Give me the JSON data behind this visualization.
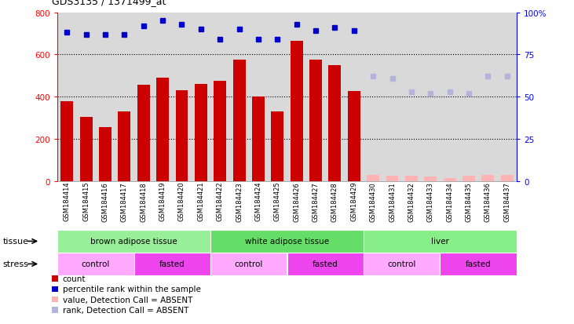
{
  "title": "GDS3135 / 1371499_at",
  "samples": [
    "GSM184414",
    "GSM184415",
    "GSM184416",
    "GSM184417",
    "GSM184418",
    "GSM184419",
    "GSM184420",
    "GSM184421",
    "GSM184422",
    "GSM184423",
    "GSM184424",
    "GSM184425",
    "GSM184426",
    "GSM184427",
    "GSM184428",
    "GSM184429",
    "GSM184430",
    "GSM184431",
    "GSM184432",
    "GSM184433",
    "GSM184434",
    "GSM184435",
    "GSM184436",
    "GSM184437"
  ],
  "count_values": [
    380,
    305,
    255,
    330,
    455,
    490,
    430,
    460,
    475,
    575,
    400,
    330,
    665,
    575,
    550,
    425,
    30,
    25,
    25,
    20,
    15,
    25,
    30,
    30
  ],
  "count_absent": [
    false,
    false,
    false,
    false,
    false,
    false,
    false,
    false,
    false,
    false,
    false,
    false,
    false,
    false,
    false,
    false,
    true,
    true,
    true,
    true,
    true,
    true,
    true,
    true
  ],
  "percentile_values": [
    88,
    87,
    87,
    87,
    92,
    95,
    93,
    90,
    84,
    90,
    84,
    84,
    93,
    89,
    91,
    89,
    62,
    61,
    53,
    52,
    53,
    52,
    62,
    62
  ],
  "percentile_absent": [
    false,
    false,
    false,
    false,
    false,
    false,
    false,
    false,
    false,
    false,
    false,
    false,
    false,
    false,
    false,
    false,
    true,
    true,
    true,
    true,
    true,
    true,
    true,
    true
  ],
  "ylim_left": [
    0,
    800
  ],
  "ylim_right": [
    0,
    100
  ],
  "yticks_left": [
    0,
    200,
    400,
    600,
    800
  ],
  "yticks_right": [
    0,
    25,
    50,
    75,
    100
  ],
  "ytick_labels_right": [
    "0",
    "25",
    "50",
    "75",
    "100%"
  ],
  "bar_color": "#cc0000",
  "bar_absent_color": "#ffb3b3",
  "dot_color": "#0000cc",
  "dot_absent_color": "#b3b3dd",
  "bg_color": "#d9d9d9",
  "tissue_groups": [
    {
      "label": "brown adipose tissue",
      "start": 0,
      "end": 8,
      "color": "#99ee99"
    },
    {
      "label": "white adipose tissue",
      "start": 8,
      "end": 16,
      "color": "#66dd66"
    },
    {
      "label": "liver",
      "start": 16,
      "end": 24,
      "color": "#88ee88"
    }
  ],
  "stress_groups": [
    {
      "label": "control",
      "start": 0,
      "end": 4,
      "color": "#ffaaff"
    },
    {
      "label": "fasted",
      "start": 4,
      "end": 8,
      "color": "#ee44ee"
    },
    {
      "label": "control",
      "start": 8,
      "end": 12,
      "color": "#ffaaff"
    },
    {
      "label": "fasted",
      "start": 12,
      "end": 16,
      "color": "#ee44ee"
    },
    {
      "label": "control",
      "start": 16,
      "end": 20,
      "color": "#ffaaff"
    },
    {
      "label": "fasted",
      "start": 20,
      "end": 24,
      "color": "#ee44ee"
    }
  ],
  "tissue_row_label": "tissue",
  "stress_row_label": "stress",
  "legend_items": [
    {
      "label": "count",
      "color": "#cc0000"
    },
    {
      "label": "percentile rank within the sample",
      "color": "#0000cc"
    },
    {
      "label": "value, Detection Call = ABSENT",
      "color": "#ffb3b3"
    },
    {
      "label": "rank, Detection Call = ABSENT",
      "color": "#b3b3dd"
    }
  ]
}
